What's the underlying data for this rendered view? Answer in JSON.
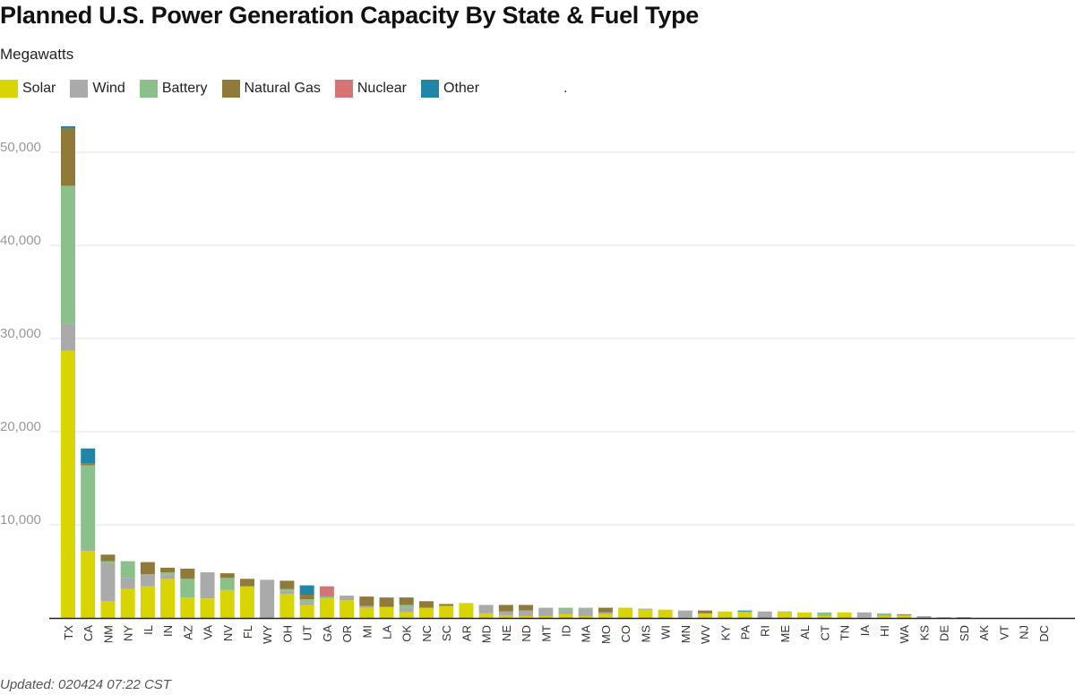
{
  "chart_data": {
    "type": "bar",
    "stacked": true,
    "title": "Planned U.S. Power Generation Capacity By State & Fuel Type",
    "subtitle": "Megawatts",
    "footnote": "Updated: 020424 07:22 CST",
    "legend_trailing_text": ".",
    "legend_placement": "top-left",
    "grid": true,
    "ylim": [
      0,
      55000
    ],
    "yticks": [
      {
        "value": 10000,
        "label": "10,000"
      },
      {
        "value": 20000,
        "label": "20,000"
      },
      {
        "value": 30000,
        "label": "30,000"
      },
      {
        "value": 40000,
        "label": "40,000"
      },
      {
        "value": 50000,
        "label": "50,000"
      }
    ],
    "categories": [
      "TX",
      "CA",
      "NM",
      "NY",
      "IL",
      "IN",
      "AZ",
      "VA",
      "NV",
      "FL",
      "WY",
      "OH",
      "UT",
      "GA",
      "OR",
      "MI",
      "LA",
      "OK",
      "NC",
      "SC",
      "AR",
      "MD",
      "NE",
      "ND",
      "MT",
      "ID",
      "MA",
      "MO",
      "CO",
      "MS",
      "WI",
      "MN",
      "WV",
      "KY",
      "PA",
      "RI",
      "ME",
      "AL",
      "CT",
      "TN",
      "IA",
      "HI",
      "WA",
      "KS",
      "DE",
      "SD",
      "AK",
      "VT",
      "NJ",
      "DC"
    ],
    "series": [
      {
        "name": "Solar",
        "color": "#d9d504",
        "values": [
          28700,
          7200,
          1800,
          3100,
          3400,
          4200,
          2200,
          2100,
          3000,
          3400,
          0,
          2600,
          1400,
          2100,
          1900,
          1100,
          1200,
          600,
          1100,
          1300,
          1600,
          500,
          300,
          200,
          200,
          400,
          200,
          400,
          1100,
          900,
          900,
          100,
          500,
          700,
          600,
          0,
          600,
          600,
          200,
          600,
          100,
          200,
          300,
          0,
          100,
          0,
          0,
          0,
          0,
          0
        ]
      },
      {
        "name": "Wind",
        "color": "#aaaaaa",
        "values": [
          2900,
          200,
          4100,
          1200,
          1300,
          500,
          0,
          2800,
          0,
          0,
          4100,
          300,
          300,
          0,
          500,
          200,
          0,
          500,
          0,
          0,
          0,
          900,
          400,
          600,
          900,
          400,
          800,
          200,
          0,
          100,
          0,
          700,
          0,
          0,
          0,
          700,
          0,
          0,
          0,
          0,
          500,
          0,
          0,
          200,
          0,
          100,
          0,
          0,
          0,
          0
        ]
      },
      {
        "name": "Battery",
        "color": "#8cc08a",
        "values": [
          14800,
          9000,
          200,
          1800,
          0,
          200,
          2000,
          0,
          1300,
          0,
          0,
          200,
          300,
          200,
          0,
          0,
          0,
          300,
          0,
          0,
          0,
          0,
          0,
          0,
          0,
          300,
          100,
          0,
          0,
          0,
          0,
          0,
          0,
          0,
          100,
          0,
          100,
          0,
          400,
          0,
          0,
          300,
          0,
          0,
          0,
          0,
          0,
          0,
          0,
          0
        ]
      },
      {
        "name": "Natural Gas",
        "color": "#8f7a3a",
        "values": [
          6200,
          200,
          700,
          0,
          1300,
          500,
          1100,
          0,
          500,
          800,
          0,
          900,
          500,
          0,
          0,
          1000,
          1000,
          800,
          700,
          200,
          0,
          0,
          700,
          600,
          0,
          0,
          0,
          500,
          0,
          0,
          0,
          0,
          300,
          0,
          0,
          0,
          0,
          0,
          0,
          0,
          0,
          0,
          100,
          0,
          0,
          0,
          0,
          0,
          0,
          0
        ]
      },
      {
        "name": "Nuclear",
        "color": "#d47474",
        "values": [
          0,
          0,
          0,
          0,
          0,
          0,
          0,
          0,
          0,
          0,
          0,
          0,
          0,
          1100,
          0,
          0,
          0,
          0,
          0,
          0,
          0,
          0,
          0,
          0,
          0,
          0,
          0,
          0,
          0,
          0,
          0,
          0,
          0,
          0,
          0,
          0,
          0,
          0,
          0,
          0,
          0,
          0,
          0,
          0,
          0,
          0,
          0,
          0,
          0,
          0
        ]
      },
      {
        "name": "Other",
        "color": "#1f86a8",
        "values": [
          200,
          1600,
          0,
          0,
          0,
          0,
          0,
          0,
          0,
          0,
          0,
          0,
          1000,
          0,
          0,
          0,
          0,
          0,
          0,
          0,
          0,
          0,
          0,
          0,
          0,
          0,
          0,
          0,
          0,
          0,
          0,
          0,
          0,
          0,
          100,
          0,
          0,
          0,
          0,
          0,
          0,
          0,
          0,
          0,
          0,
          0,
          0,
          0,
          0,
          0
        ]
      }
    ]
  }
}
